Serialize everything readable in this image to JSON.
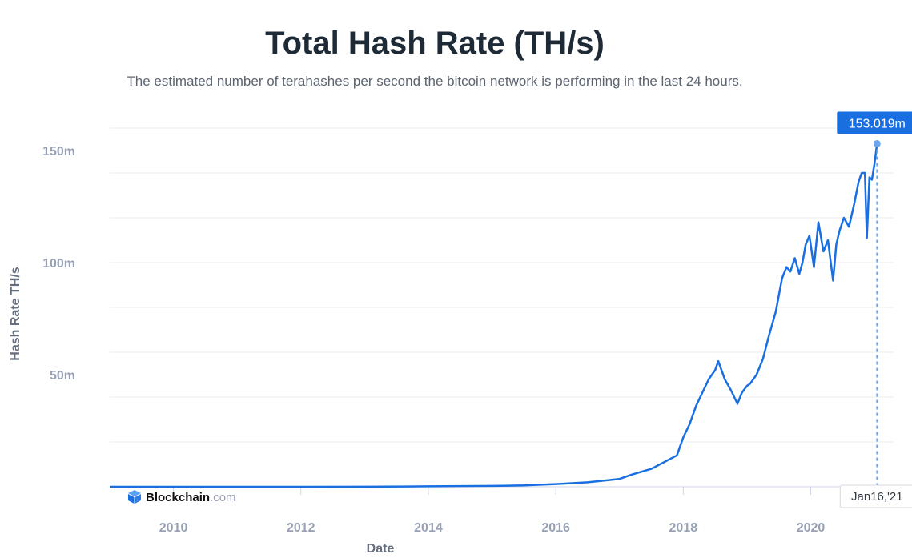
{
  "chart_data": {
    "type": "line",
    "title": "Total Hash Rate (TH/s)",
    "subtitle": "The estimated number of terahashes per second the bitcoin network is performing in the last 24 hours.",
    "xlabel": "Date",
    "ylabel": "Hash Rate TH/s",
    "x_ticks": [
      "2010",
      "2012",
      "2014",
      "2016",
      "2018",
      "2020"
    ],
    "y_ticks": [
      "50m",
      "100m",
      "150m"
    ],
    "xlim": [
      2009.0,
      2021.3
    ],
    "ylim": [
      0,
      160
    ],
    "grid": true,
    "series": [
      {
        "color": "#1a6fe0",
        "x": [
          2009.0,
          2010.0,
          2011.0,
          2012.0,
          2013.0,
          2014.0,
          2015.0,
          2015.5,
          2016.0,
          2016.5,
          2017.0,
          2017.2,
          2017.5,
          2017.7,
          2017.9,
          2018.0,
          2018.1,
          2018.2,
          2018.3,
          2018.4,
          2018.5,
          2018.55,
          2018.65,
          2018.75,
          2018.85,
          2018.92,
          2019.0,
          2019.05,
          2019.15,
          2019.25,
          2019.35,
          2019.45,
          2019.55,
          2019.62,
          2019.68,
          2019.75,
          2019.82,
          2019.87,
          2019.92,
          2019.98,
          2020.05,
          2020.12,
          2020.2,
          2020.27,
          2020.35,
          2020.4,
          2020.45,
          2020.52,
          2020.6,
          2020.68,
          2020.75,
          2020.8,
          2020.85,
          2020.88,
          2020.92,
          2020.96,
          2021.0,
          2021.04
        ],
        "values": [
          0,
          0,
          0,
          0,
          0.02,
          0.2,
          0.4,
          0.6,
          1.2,
          2.0,
          3.5,
          5.5,
          8,
          11,
          14,
          22,
          28,
          36,
          42,
          48,
          52,
          56,
          48,
          43,
          37,
          42,
          45,
          46,
          50,
          57,
          68,
          78,
          93,
          98,
          96,
          102,
          95,
          100,
          108,
          112,
          98,
          118,
          105,
          110,
          92,
          108,
          114,
          120,
          116,
          126,
          136,
          140,
          140,
          111,
          138,
          137,
          144,
          153.019
        ]
      }
    ],
    "tooltip": {
      "value_label": "153.019m",
      "date_label": "Jan16,'21"
    }
  },
  "brand": {
    "name": "Blockchain",
    "suffix": ".com",
    "icon": "blockchain-logo-icon"
  },
  "colors": {
    "line": "#1a6fe0",
    "tooltip_bg": "#1a6fe0"
  }
}
